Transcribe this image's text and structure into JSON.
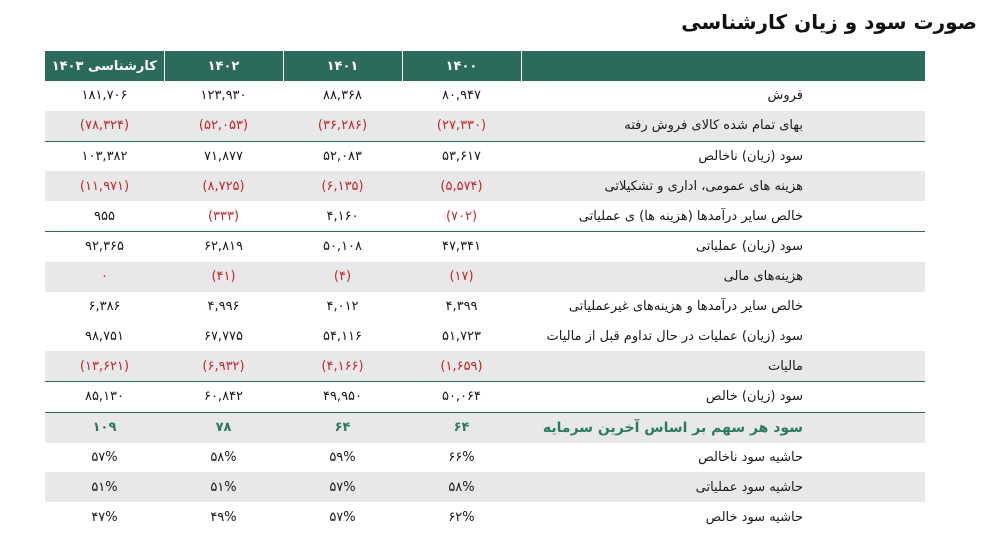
{
  "title": "صورت سود و زیان کارشناسی",
  "columns": [
    "",
    "۱۴۰۰",
    "۱۴۰۱",
    "۱۴۰۲",
    "کارشناسی ۱۴۰۳"
  ],
  "rows": [
    {
      "label": "فروش",
      "values": [
        "۸۰,۹۴۷",
        "۸۸,۳۶۸",
        "۱۲۳,۹۳۰",
        "۱۸۱,۷۰۶"
      ],
      "neg": [
        false,
        false,
        false,
        false
      ]
    },
    {
      "label": "بهای تمام شده کالای فروش رفته",
      "values": [
        "(۲۷,۳۳۰)",
        "(۳۶,۲۸۶)",
        "(۵۲,۰۵۳)",
        "(۷۸,۳۲۴)"
      ],
      "neg": [
        true,
        true,
        true,
        true
      ]
    },
    {
      "label": "سود (زیان) ناخالص",
      "values": [
        "۵۳,۶۱۷",
        "۵۲,۰۸۳",
        "۷۱,۸۷۷",
        "۱۰۳,۳۸۲"
      ],
      "neg": [
        false,
        false,
        false,
        false
      ]
    },
    {
      "label": "هزینه های عمومی، اداری و تشکیلاتی",
      "values": [
        "(۵,۵۷۴)",
        "(۶,۱۳۵)",
        "(۸,۷۲۵)",
        "(۱۱,۹۷۱)"
      ],
      "neg": [
        true,
        true,
        true,
        true
      ]
    },
    {
      "label": "خالص سایر درآمدها (هزینه ها) ی عملیاتی",
      "values": [
        "(۷۰۲)",
        "۴,۱۶۰",
        "(۳۳۳)",
        "۹۵۵"
      ],
      "neg": [
        true,
        false,
        true,
        false
      ]
    },
    {
      "label": "سود (زیان) عملیاتی",
      "values": [
        "۴۷,۳۴۱",
        "۵۰,۱۰۸",
        "۶۲,۸۱۹",
        "۹۲,۳۶۵"
      ],
      "neg": [
        false,
        false,
        false,
        false
      ]
    },
    {
      "label": "هزینه‌های مالی",
      "values": [
        "(۱۷)",
        "(۴)",
        "(۴۱)",
        "۰"
      ],
      "neg": [
        true,
        true,
        true,
        true
      ]
    },
    {
      "label": "خالص سایر درآمدها و هزینه‌های غیرعملیاتی",
      "values": [
        "۴,۳۹۹",
        "۴,۰۱۲",
        "۴,۹۹۶",
        "۶,۳۸۶"
      ],
      "neg": [
        false,
        false,
        false,
        false
      ]
    },
    {
      "label": "سود (زیان) عملیات در حال تداوم قبل از مالیات",
      "values": [
        "۵۱,۷۲۳",
        "۵۴,۱۱۶",
        "۶۷,۷۷۵",
        "۹۸,۷۵۱"
      ],
      "neg": [
        false,
        false,
        false,
        false
      ]
    },
    {
      "label": "مالیات",
      "values": [
        "(۱,۶۵۹)",
        "(۴,۱۶۶)",
        "(۶,۹۳۲)",
        "(۱۳,۶۲۱)"
      ],
      "neg": [
        true,
        true,
        true,
        true
      ]
    },
    {
      "label": "سود (زیان) خالص",
      "values": [
        "۵۰,۰۶۴",
        "۴۹,۹۵۰",
        "۶۰,۸۴۲",
        "۸۵,۱۳۰"
      ],
      "neg": [
        false,
        false,
        false,
        false
      ]
    },
    {
      "label": "سود هر سهم بر اساس آخرین سرمایه",
      "values": [
        "۶۴",
        "۶۴",
        "۷۸",
        "۱۰۹"
      ],
      "neg": [
        false,
        false,
        false,
        false
      ]
    },
    {
      "label": "حاشیه سود ناخالص",
      "values": [
        "۶۶%",
        "۵۹%",
        "۵۸%",
        "۵۷%"
      ],
      "neg": [
        false,
        false,
        false,
        false
      ]
    },
    {
      "label": "حاشیه سود عملیاتی",
      "values": [
        "۵۸%",
        "۵۷%",
        "۵۱%",
        "۵۱%"
      ],
      "neg": [
        false,
        false,
        false,
        false
      ]
    },
    {
      "label": "حاشیه سود خالص",
      "values": [
        "۶۲%",
        "۵۷%",
        "۴۹%",
        "۴۷%"
      ],
      "neg": [
        false,
        false,
        false,
        false
      ]
    }
  ],
  "colors": {
    "header": "#2c6a5c",
    "negative": "#c0282d",
    "eps": "#2c7a63",
    "shade": "#e8e8e8"
  }
}
